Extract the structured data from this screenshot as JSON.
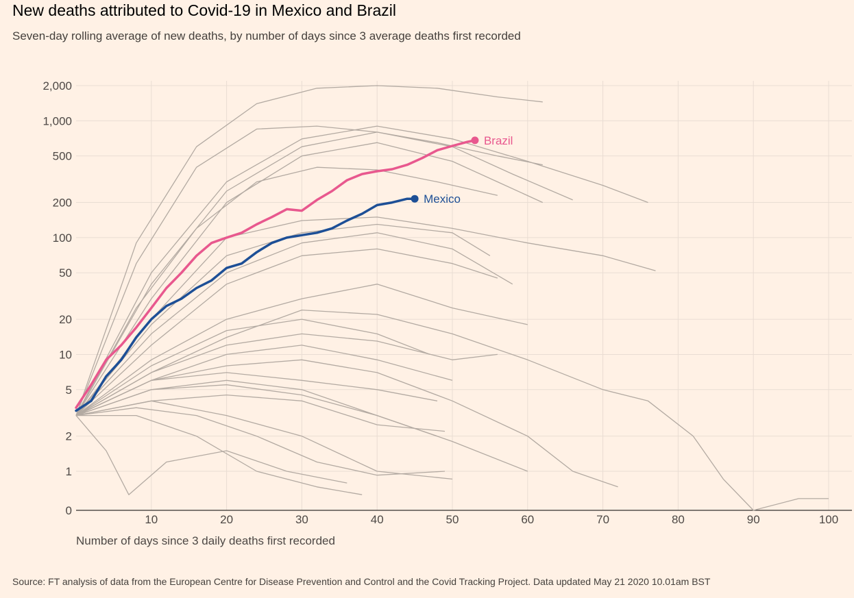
{
  "chart_data": {
    "type": "line",
    "title": "New deaths attributed to Covid-19 in Mexico and Brazil",
    "subtitle": "Seven-day rolling average of new deaths, by number of days since 3 average deaths first recorded",
    "xlabel": "Number of days since 3 daily deaths first recorded",
    "ylabel": "",
    "source": "Source: FT analysis of data from the European Centre for Disease Prevention and Control and the Covid Tracking Project. Data updated May 21 2020 10.01am BST",
    "y_scale": "log",
    "xlim": [
      0,
      103
    ],
    "x_ticks": [
      10,
      20,
      30,
      40,
      50,
      60,
      70,
      80,
      90,
      100
    ],
    "y_ticks": [
      0,
      1,
      2,
      5,
      10,
      20,
      50,
      100,
      200,
      500,
      1000,
      2000
    ],
    "y_tick_labels": [
      "0",
      "1",
      "2",
      "5",
      "10",
      "20",
      "50",
      "100",
      "200",
      "500",
      "1,000",
      "2,000"
    ],
    "grid": true,
    "colors": {
      "background": "#fff1e5",
      "grid": "#e9ddd3",
      "axis": "#33302e",
      "context_lines": "#b3aaa2",
      "brazil": "#e8588e",
      "mexico": "#1d4f96"
    },
    "series": [
      {
        "name": "Brazil",
        "highlight": true,
        "color": "#e8588e",
        "x": [
          0,
          2,
          4,
          6,
          8,
          10,
          12,
          14,
          16,
          18,
          20,
          22,
          24,
          26,
          28,
          30,
          32,
          34,
          36,
          38,
          40,
          42,
          44,
          46,
          48,
          50,
          52,
          53
        ],
        "y": [
          3.5,
          5.5,
          9,
          12,
          17,
          25,
          37,
          50,
          70,
          90,
          100,
          110,
          130,
          150,
          175,
          170,
          210,
          250,
          310,
          350,
          370,
          385,
          420,
          480,
          560,
          610,
          660,
          680
        ]
      },
      {
        "name": "Mexico",
        "highlight": true,
        "color": "#1d4f96",
        "x": [
          0,
          2,
          4,
          6,
          8,
          10,
          12,
          14,
          16,
          18,
          20,
          22,
          24,
          26,
          28,
          30,
          32,
          34,
          36,
          38,
          40,
          42,
          44,
          45
        ],
        "y": [
          3.3,
          4,
          6.5,
          9,
          14,
          20,
          26,
          30,
          37,
          43,
          55,
          60,
          75,
          90,
          100,
          105,
          110,
          120,
          140,
          160,
          190,
          200,
          215,
          215
        ]
      },
      {
        "name": "",
        "x": [
          0,
          8,
          16,
          24,
          32,
          40,
          48,
          56,
          62
        ],
        "y": [
          3,
          90,
          600,
          1400,
          1900,
          2000,
          1900,
          1600,
          1450
        ]
      },
      {
        "name": "",
        "x": [
          0,
          8,
          16,
          24,
          32,
          40,
          48,
          56,
          62
        ],
        "y": [
          3,
          60,
          400,
          850,
          900,
          800,
          650,
          500,
          420
        ]
      },
      {
        "name": "",
        "x": [
          0,
          10,
          20,
          30,
          40,
          50,
          60,
          70,
          76
        ],
        "y": [
          3,
          50,
          300,
          700,
          900,
          700,
          450,
          280,
          200
        ]
      },
      {
        "name": "",
        "x": [
          0,
          10,
          20,
          30,
          40,
          50,
          58,
          66
        ],
        "y": [
          3,
          40,
          250,
          600,
          800,
          600,
          350,
          210
        ]
      },
      {
        "name": "",
        "x": [
          0,
          10,
          20,
          30,
          40,
          50,
          56,
          62
        ],
        "y": [
          3,
          30,
          200,
          500,
          650,
          450,
          300,
          200
        ]
      },
      {
        "name": "",
        "x": [
          0,
          8,
          16,
          24,
          32,
          40,
          48,
          56
        ],
        "y": [
          3,
          25,
          120,
          300,
          400,
          380,
          300,
          230
        ]
      },
      {
        "name": "",
        "x": [
          0,
          10,
          20,
          30,
          40,
          50,
          60,
          70,
          77
        ],
        "y": [
          3,
          20,
          100,
          140,
          150,
          120,
          90,
          70,
          52
        ]
      },
      {
        "name": "",
        "x": [
          0,
          10,
          20,
          30,
          40,
          50,
          55
        ],
        "y": [
          3,
          18,
          70,
          110,
          130,
          110,
          70
        ]
      },
      {
        "name": "",
        "x": [
          0,
          10,
          20,
          30,
          40,
          50,
          58
        ],
        "y": [
          3,
          15,
          50,
          90,
          110,
          80,
          40
        ]
      },
      {
        "name": "",
        "x": [
          0,
          10,
          20,
          30,
          40,
          50,
          56
        ],
        "y": [
          3,
          12,
          40,
          70,
          80,
          60,
          45
        ]
      },
      {
        "name": "",
        "x": [
          0,
          10,
          20,
          30,
          40,
          50,
          60
        ],
        "y": [
          3,
          9,
          20,
          30,
          40,
          25,
          18
        ]
      },
      {
        "name": "",
        "x": [
          0,
          10,
          20,
          30,
          40,
          50,
          60,
          70,
          76,
          82,
          86,
          90,
          96,
          100
        ],
        "y": [
          3,
          7,
          14,
          24,
          22,
          15,
          9,
          5,
          4,
          2,
          0.8,
          0,
          0.3,
          0.3
        ]
      },
      {
        "name": "",
        "x": [
          0,
          10,
          20,
          30,
          40,
          47
        ],
        "y": [
          3,
          8,
          16,
          20,
          15,
          10
        ]
      },
      {
        "name": "",
        "x": [
          0,
          10,
          20,
          30,
          40,
          50
        ],
        "y": [
          3,
          6,
          10,
          12,
          9,
          6
        ]
      },
      {
        "name": "",
        "x": [
          0,
          10,
          20,
          30,
          40,
          50,
          56
        ],
        "y": [
          3,
          7,
          12,
          15,
          13,
          9,
          10
        ]
      },
      {
        "name": "",
        "x": [
          0,
          10,
          20,
          30,
          40,
          50,
          60,
          66,
          72
        ],
        "y": [
          3,
          6,
          8,
          9,
          7,
          4,
          2,
          1,
          0.6
        ]
      },
      {
        "name": "",
        "x": [
          0,
          10,
          20,
          30,
          40,
          48
        ],
        "y": [
          3,
          5,
          6,
          5,
          3,
          2
        ]
      },
      {
        "name": "",
        "x": [
          0,
          10,
          20,
          30,
          40,
          49
        ],
        "y": [
          3,
          4,
          4.5,
          4,
          2.5,
          2.2
        ]
      },
      {
        "name": "",
        "x": [
          0,
          10,
          20,
          30,
          40,
          50,
          60
        ],
        "y": [
          3,
          5,
          5.5,
          4.5,
          3,
          1.8,
          1
        ]
      },
      {
        "name": "",
        "x": [
          0,
          8,
          16,
          24,
          32,
          40,
          49
        ],
        "y": [
          3,
          3.5,
          3,
          2,
          1.2,
          0.9,
          1
        ]
      },
      {
        "name": "",
        "x": [
          0,
          8,
          16,
          24,
          32,
          38
        ],
        "y": [
          3,
          3,
          2,
          1,
          0.6,
          0.4
        ]
      },
      {
        "name": "",
        "x": [
          0,
          4,
          7,
          12,
          20,
          28,
          36
        ],
        "y": [
          3,
          1.5,
          0.4,
          1.2,
          1.5,
          1,
          0.7
        ]
      },
      {
        "name": "",
        "x": [
          0,
          10,
          20,
          30,
          40,
          50
        ],
        "y": [
          3,
          4,
          3,
          2,
          1,
          0.8
        ]
      },
      {
        "name": "",
        "x": [
          0,
          10,
          20,
          30,
          40,
          48
        ],
        "y": [
          3,
          6,
          7,
          6,
          5,
          4
        ]
      }
    ],
    "annotations": [
      {
        "text": "Brazil",
        "series": "Brazil",
        "x": 53,
        "y": 680
      },
      {
        "text": "Mexico",
        "series": "Mexico",
        "x": 45,
        "y": 215
      }
    ]
  }
}
